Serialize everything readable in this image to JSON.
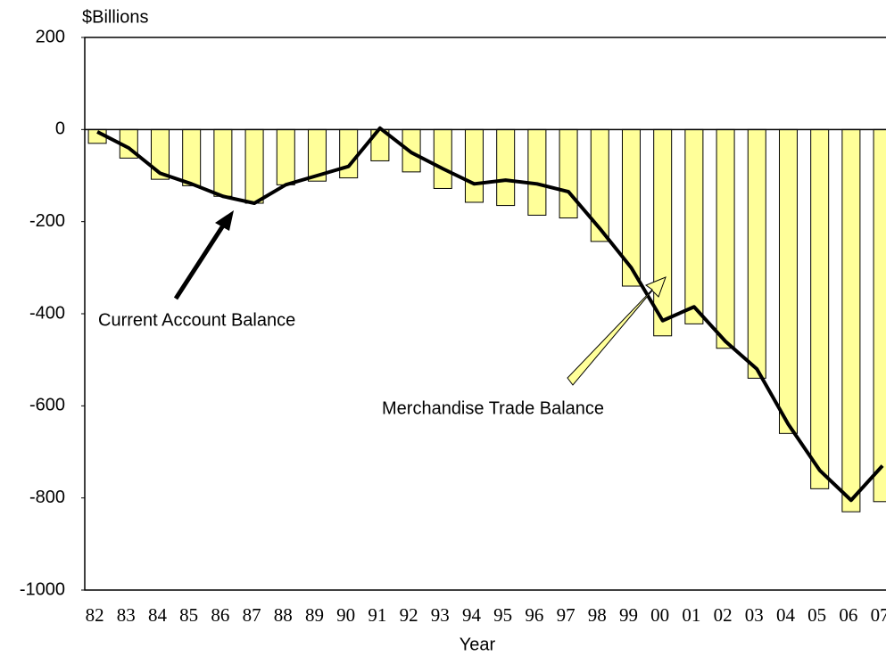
{
  "chart_data": {
    "type": "bar",
    "y_label": "$Billions",
    "x_label": "Year",
    "categories": [
      "82",
      "83",
      "84",
      "85",
      "86",
      "87",
      "88",
      "89",
      "90",
      "91",
      "92",
      "93",
      "94",
      "95",
      "96",
      "97",
      "98",
      "99",
      "00",
      "01",
      "02",
      "03",
      "04",
      "05",
      "06",
      "07"
    ],
    "series": [
      {
        "name": "Merchandise Trade Balance",
        "type": "bar",
        "color": "#ffff99",
        "values": [
          -30,
          -62,
          -108,
          -122,
          -145,
          -160,
          -120,
          -112,
          -105,
          -68,
          -92,
          -128,
          -158,
          -165,
          -186,
          -192,
          -243,
          -340,
          -448,
          -422,
          -475,
          -540,
          -660,
          -780,
          -830,
          -808
        ]
      },
      {
        "name": "Current Account Balance",
        "type": "line",
        "color": "#000000",
        "values": [
          -5,
          -40,
          -95,
          -118,
          -145,
          -160,
          -120,
          -100,
          -80,
          3,
          -50,
          -85,
          -118,
          -110,
          -118,
          -135,
          -215,
          -300,
          -415,
          -385,
          -460,
          -520,
          -640,
          -740,
          -805,
          -730
        ]
      }
    ],
    "ylim": [
      -1000,
      200
    ],
    "yticks": [
      200,
      0,
      -200,
      -400,
      -600,
      -800,
      -1000
    ],
    "grid": false
  }
}
